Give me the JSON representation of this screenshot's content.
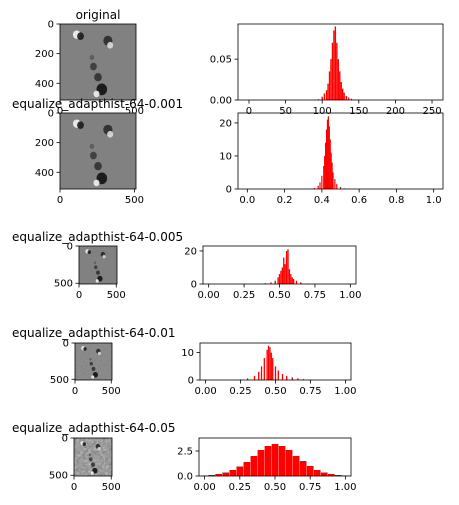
{
  "chart_data": [
    {
      "type": "image",
      "title": "original",
      "xticks": [
        "0",
        "500"
      ],
      "yticks": [
        "0",
        "200",
        "400"
      ],
      "style": "smooth-gray"
    },
    {
      "type": "bar",
      "subtype": "histogram",
      "title": "",
      "xlim": [
        -15,
        265
      ],
      "ylim": [
        0,
        0.093
      ],
      "xticks": [
        "0",
        "50",
        "100",
        "150",
        "200",
        "250"
      ],
      "yticks": [
        "0.00",
        "0.05"
      ],
      "color": "#ff0000",
      "bins_x": [
        95,
        100,
        103,
        106,
        108,
        110,
        112,
        114,
        116,
        118,
        120,
        122,
        124,
        126,
        128,
        130,
        133,
        136,
        140,
        145
      ],
      "bins_y": [
        0.001,
        0.004,
        0.008,
        0.012,
        0.02,
        0.035,
        0.05,
        0.07,
        0.085,
        0.09,
        0.07,
        0.05,
        0.035,
        0.022,
        0.014,
        0.009,
        0.005,
        0.003,
        0.0015,
        0.0005
      ]
    },
    {
      "type": "image",
      "title": "equalize_adapthist-64-0.001",
      "xticks": [
        "0",
        "500"
      ],
      "yticks": [
        "0",
        "200",
        "400"
      ],
      "style": "smooth-gray"
    },
    {
      "type": "bar",
      "subtype": "histogram",
      "title": "",
      "xlim": [
        -0.05,
        1.05
      ],
      "ylim": [
        0,
        23
      ],
      "xticks": [
        "0.0",
        "0.2",
        "0.4",
        "0.6",
        "0.8",
        "1.0"
      ],
      "yticks": [
        "0",
        "10",
        "20"
      ],
      "color": "#ff0000",
      "bins_x": [
        0.36,
        0.38,
        0.39,
        0.4,
        0.41,
        0.415,
        0.42,
        0.425,
        0.43,
        0.435,
        0.44,
        0.445,
        0.45,
        0.455,
        0.46,
        0.47,
        0.48,
        0.5,
        0.52
      ],
      "bins_y": [
        0.3,
        1,
        2,
        4,
        7,
        10,
        14,
        18,
        21,
        22,
        19,
        15,
        11,
        8,
        5,
        3,
        1.5,
        0.6,
        0.2
      ]
    },
    {
      "type": "image",
      "title": "equalize_adapthist-64-0.005",
      "xticks": [
        "0",
        "500"
      ],
      "yticks": [
        "0",
        "500"
      ],
      "style": "smooth-gray"
    },
    {
      "type": "bar",
      "subtype": "histogram",
      "title": "",
      "xlim": [
        -0.04,
        1.04
      ],
      "ylim": [
        0,
        23
      ],
      "xticks": [
        "0.00",
        "0.25",
        "0.50",
        "0.75",
        "1.00"
      ],
      "yticks": [
        "0",
        "20"
      ],
      "color": "#ff0000",
      "bins_x": [
        0.4,
        0.44,
        0.47,
        0.49,
        0.5,
        0.51,
        0.52,
        0.53,
        0.54,
        0.55,
        0.56,
        0.57,
        0.58,
        0.59,
        0.6,
        0.62,
        0.65,
        0.7
      ],
      "bins_y": [
        0.5,
        1,
        2,
        4,
        6,
        8,
        10,
        16,
        12,
        20,
        21,
        9,
        6,
        4,
        3,
        2,
        1,
        0.3
      ]
    },
    {
      "type": "image",
      "title": "equalize_adapthist-64-0.01",
      "xticks": [
        "0",
        "500"
      ],
      "yticks": [
        "0",
        "500"
      ],
      "style": "textured-gray"
    },
    {
      "type": "bar",
      "subtype": "histogram",
      "title": "",
      "xlim": [
        -0.04,
        1.04
      ],
      "ylim": [
        0,
        13.5
      ],
      "xticks": [
        "0.00",
        "0.25",
        "0.50",
        "0.75",
        "1.00"
      ],
      "yticks": [
        "0",
        "10"
      ],
      "color": "#ff0000",
      "bins_x": [
        0.25,
        0.3,
        0.35,
        0.38,
        0.4,
        0.42,
        0.44,
        0.45,
        0.46,
        0.47,
        0.48,
        0.5,
        0.52,
        0.55,
        0.58,
        0.62,
        0.66,
        0.7,
        0.75
      ],
      "bins_y": [
        0.2,
        0.6,
        1.5,
        3,
        5,
        8,
        11,
        12.5,
        12,
        10,
        8,
        5,
        3.5,
        2.2,
        1.5,
        1,
        0.6,
        0.3,
        0.1
      ]
    },
    {
      "type": "image",
      "title": "equalize_adapthist-64-0.05",
      "xticks": [
        "0",
        "500"
      ],
      "yticks": [
        "0",
        "500"
      ],
      "style": "noisy-gray"
    },
    {
      "type": "bar",
      "subtype": "histogram",
      "title": "",
      "xlim": [
        -0.04,
        1.04
      ],
      "ylim": [
        0,
        3.8
      ],
      "xticks": [
        "0.00",
        "0.25",
        "0.50",
        "0.75",
        "1.00"
      ],
      "yticks": [
        "0.0",
        "2.5"
      ],
      "color": "#ff0000",
      "bins_x": [
        0.0,
        0.05,
        0.1,
        0.15,
        0.2,
        0.25,
        0.3,
        0.35,
        0.4,
        0.45,
        0.5,
        0.55,
        0.6,
        0.65,
        0.7,
        0.75,
        0.8,
        0.85,
        0.9,
        0.95,
        1.0
      ],
      "bins_y": [
        0.05,
        0.1,
        0.2,
        0.35,
        0.6,
        0.95,
        1.4,
        2.0,
        2.6,
        3.0,
        3.2,
        3.0,
        2.6,
        2.0,
        1.5,
        1.0,
        0.6,
        0.35,
        0.2,
        0.1,
        0.05
      ]
    }
  ]
}
